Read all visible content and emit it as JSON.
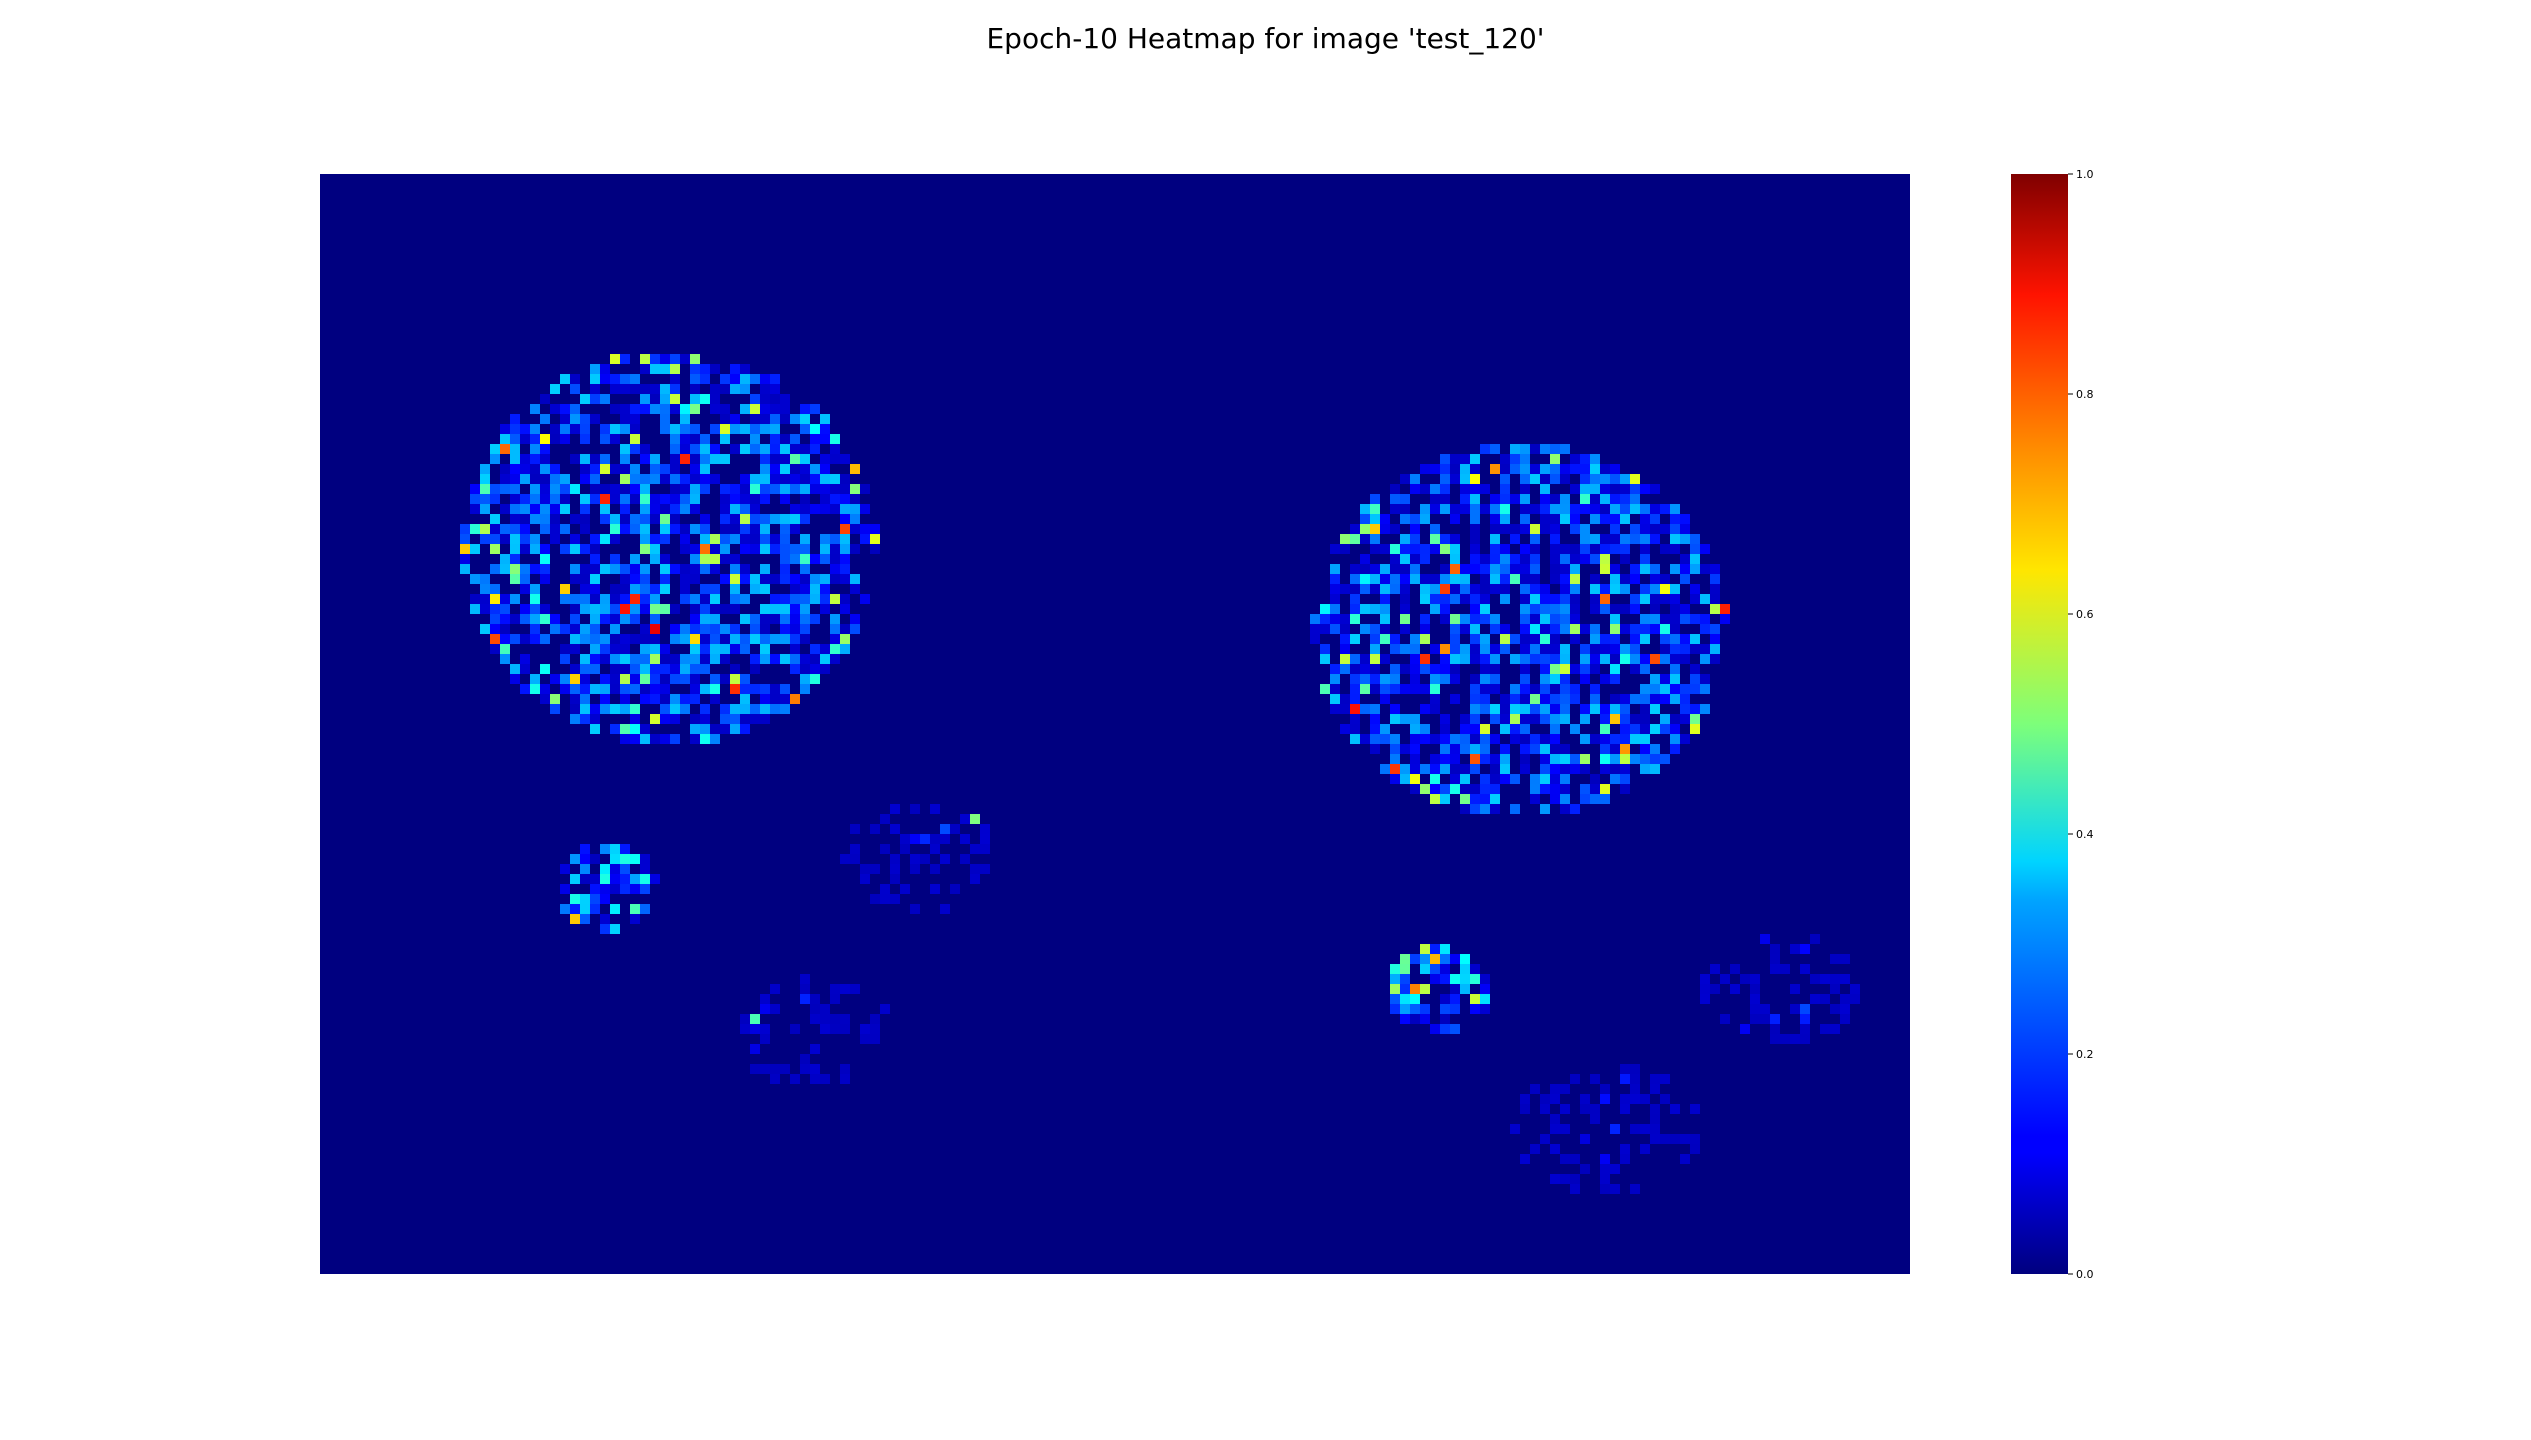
{
  "chart_data": {
    "type": "heatmap",
    "title": "Epoch-10 Heatmap for image 'test_120'",
    "xlabel": "",
    "ylabel": "",
    "colormap": "jet",
    "value_range": [
      0.0,
      1.0
    ],
    "background_value": 0.0,
    "axes_visible": false,
    "grid": false,
    "colorbar": {
      "placement": "right",
      "ticks": [
        0.0,
        0.2,
        0.4,
        0.6,
        0.8,
        1.0
      ],
      "tick_labels": [
        "0.0",
        "0.2",
        "0.4",
        "0.6",
        "0.8",
        "1.0"
      ]
    },
    "regions": [
      {
        "name": "large-blob-left",
        "cx": 0.22,
        "cy": 0.34,
        "rx": 0.13,
        "ry": 0.18,
        "density": 0.55,
        "mean": 0.2
      },
      {
        "name": "large-blob-right",
        "cx": 0.755,
        "cy": 0.415,
        "rx": 0.13,
        "ry": 0.17,
        "density": 0.55,
        "mean": 0.2
      },
      {
        "name": "small-blob-left",
        "cx": 0.181,
        "cy": 0.648,
        "rx": 0.033,
        "ry": 0.04,
        "density": 0.6,
        "mean": 0.25
      },
      {
        "name": "small-blob-right",
        "cx": 0.703,
        "cy": 0.743,
        "rx": 0.033,
        "ry": 0.04,
        "density": 0.6,
        "mean": 0.25
      },
      {
        "name": "sparse-patch-1",
        "cx": 0.38,
        "cy": 0.62,
        "rx": 0.05,
        "ry": 0.05,
        "density": 0.06,
        "mean": 0.12
      },
      {
        "name": "sparse-patch-2",
        "cx": 0.31,
        "cy": 0.78,
        "rx": 0.05,
        "ry": 0.05,
        "density": 0.05,
        "mean": 0.1
      },
      {
        "name": "sparse-patch-3",
        "cx": 0.92,
        "cy": 0.74,
        "rx": 0.05,
        "ry": 0.05,
        "density": 0.06,
        "mean": 0.12
      },
      {
        "name": "sparse-patch-4",
        "cx": 0.81,
        "cy": 0.87,
        "rx": 0.06,
        "ry": 0.06,
        "density": 0.05,
        "mean": 0.1
      }
    ]
  }
}
